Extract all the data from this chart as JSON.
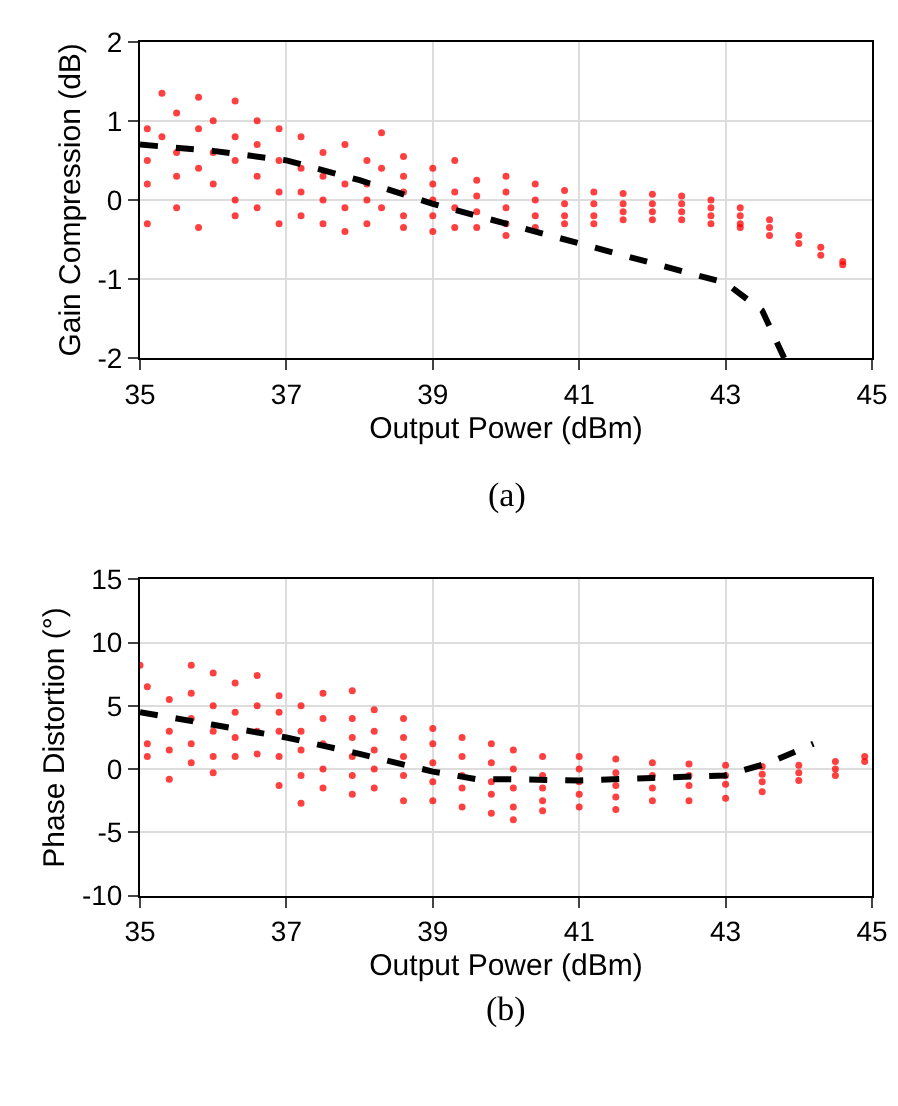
{
  "chart_data": [
    {
      "type": "scatter",
      "xlabel": "Output Power (dBm)",
      "ylabel": "Gain Compression (dB)",
      "annotations": [
        "(a)"
      ],
      "xlim": [
        35,
        45
      ],
      "ylim": [
        -2,
        2
      ],
      "xticks": [
        35,
        37,
        39,
        41,
        43,
        45
      ],
      "yticks": [
        -2,
        -1,
        0,
        1,
        2
      ],
      "grid": true,
      "series": [
        {
          "color": "#ff0000",
          "marker": "circle",
          "x": [
            35.1,
            35.1,
            35.1,
            35.1,
            35.3,
            35.3,
            35.5,
            35.5,
            35.5,
            35.5,
            35.8,
            35.8,
            35.8,
            35.8,
            36.0,
            36.0,
            36.0,
            36.3,
            36.3,
            36.3,
            36.3,
            36.3,
            36.6,
            36.6,
            36.6,
            36.6,
            36.9,
            36.9,
            36.9,
            36.9,
            37.2,
            37.2,
            37.2,
            37.2,
            37.5,
            37.5,
            37.5,
            37.5,
            37.8,
            37.8,
            37.8,
            37.8,
            38.1,
            38.1,
            38.1,
            38.1,
            38.3,
            38.3,
            38.3,
            38.6,
            38.6,
            38.6,
            38.6,
            38.6,
            39.0,
            39.0,
            39.0,
            39.0,
            39.0,
            39.3,
            39.3,
            39.3,
            39.3,
            39.6,
            39.6,
            39.6,
            39.6,
            40.0,
            40.0,
            40.0,
            40.0,
            40.0,
            40.4,
            40.4,
            40.4,
            40.4,
            40.8,
            40.8,
            40.8,
            40.8,
            41.2,
            41.2,
            41.2,
            41.2,
            41.6,
            41.6,
            41.6,
            41.6,
            42.0,
            42.0,
            42.0,
            42.0,
            42.4,
            42.4,
            42.4,
            42.4,
            42.8,
            42.8,
            42.8,
            42.8,
            43.2,
            43.2,
            43.2,
            43.2,
            43.6,
            43.6,
            43.6,
            44.0,
            44.0,
            44.3,
            44.3,
            44.6,
            44.6
          ],
          "values": [
            0.9,
            0.2,
            -0.3,
            0.5,
            1.35,
            0.8,
            1.1,
            0.6,
            0.3,
            -0.1,
            1.3,
            0.9,
            0.4,
            -0.35,
            1.0,
            0.6,
            0.2,
            1.25,
            0.8,
            0.5,
            0.0,
            -0.2,
            1.0,
            0.7,
            0.3,
            -0.1,
            0.9,
            0.5,
            0.1,
            -0.3,
            0.8,
            0.4,
            0.1,
            -0.2,
            0.6,
            0.3,
            0.0,
            -0.3,
            0.7,
            0.2,
            -0.1,
            -0.4,
            0.5,
            0.2,
            0.0,
            -0.3,
            0.85,
            0.4,
            -0.1,
            0.55,
            0.3,
            0.1,
            -0.2,
            -0.35,
            0.4,
            0.2,
            0.0,
            -0.2,
            -0.4,
            0.5,
            0.1,
            -0.1,
            -0.35,
            0.25,
            0.05,
            -0.15,
            -0.35,
            0.3,
            0.1,
            -0.1,
            -0.3,
            -0.45,
            0.2,
            0.0,
            -0.2,
            -0.35,
            0.12,
            -0.05,
            -0.2,
            -0.3,
            0.1,
            -0.05,
            -0.2,
            -0.3,
            0.08,
            -0.05,
            -0.15,
            -0.25,
            0.07,
            -0.05,
            -0.15,
            -0.25,
            0.05,
            -0.05,
            -0.15,
            -0.25,
            0.0,
            -0.1,
            -0.2,
            -0.3,
            -0.1,
            -0.2,
            -0.3,
            -0.35,
            -0.25,
            -0.35,
            -0.45,
            -0.45,
            -0.55,
            -0.6,
            -0.7,
            -0.78,
            -0.82
          ]
        },
        {
          "type": "line",
          "color": "#000000",
          "line_style": "dashed",
          "marker": "none",
          "x": [
            35,
            36,
            37,
            38,
            39,
            40,
            41,
            42,
            43,
            43.5,
            43.8
          ],
          "values": [
            0.7,
            0.62,
            0.5,
            0.25,
            -0.05,
            -0.3,
            -0.55,
            -0.8,
            -1.05,
            -1.4,
            -2
          ]
        }
      ]
    },
    {
      "type": "scatter",
      "xlabel": "Output Power (dBm)",
      "ylabel": "Phase Distortion (°)",
      "annotations": [
        "(b)"
      ],
      "xlim": [
        35,
        45
      ],
      "ylim": [
        -10,
        15
      ],
      "xticks": [
        35,
        37,
        39,
        41,
        43,
        45
      ],
      "yticks": [
        -10,
        -5,
        0,
        5,
        10,
        15
      ],
      "grid": true,
      "series": [
        {
          "color": "#ff0000",
          "marker": "circle",
          "x": [
            35.0,
            35.1,
            35.1,
            35.1,
            35.4,
            35.4,
            35.4,
            35.4,
            35.7,
            35.7,
            35.7,
            35.7,
            35.7,
            36.0,
            36.0,
            36.0,
            36.0,
            36.0,
            36.3,
            36.3,
            36.3,
            36.3,
            36.6,
            36.6,
            36.6,
            36.6,
            36.9,
            36.9,
            36.9,
            36.9,
            36.9,
            37.2,
            37.2,
            37.2,
            37.2,
            37.2,
            37.5,
            37.5,
            37.5,
            37.5,
            37.5,
            37.9,
            37.9,
            37.9,
            37.9,
            37.9,
            37.9,
            38.2,
            38.2,
            38.2,
            38.2,
            38.2,
            38.6,
            38.6,
            38.6,
            38.6,
            38.6,
            39.0,
            39.0,
            39.0,
            39.0,
            39.0,
            39.4,
            39.4,
            39.4,
            39.4,
            39.4,
            39.8,
            39.8,
            39.8,
            39.8,
            39.8,
            40.1,
            40.1,
            40.1,
            40.1,
            40.1,
            40.5,
            40.5,
            40.5,
            40.5,
            40.5,
            41.0,
            41.0,
            41.0,
            41.0,
            41.0,
            41.5,
            41.5,
            41.5,
            41.5,
            41.5,
            42.0,
            42.0,
            42.0,
            42.0,
            42.5,
            42.5,
            42.5,
            42.5,
            43.0,
            43.0,
            43.0,
            43.0,
            43.5,
            43.5,
            43.5,
            43.5,
            44.0,
            44.0,
            44.0,
            44.5,
            44.5,
            44.5,
            44.9,
            44.9
          ],
          "values": [
            8.2,
            6.5,
            2,
            1,
            5.5,
            3,
            1.5,
            -0.8,
            8.2,
            6,
            4,
            2,
            0.5,
            7.6,
            5,
            3,
            1,
            -0.3,
            6.8,
            4.5,
            2.5,
            1,
            7.4,
            5,
            3,
            1.2,
            5.8,
            4.5,
            3,
            1,
            -1.3,
            5,
            3,
            1.5,
            -0.5,
            -2.7,
            6,
            4,
            2,
            0,
            -1.5,
            6.2,
            4,
            2.5,
            1,
            -0.5,
            -2,
            4.7,
            3,
            1.5,
            0,
            -1.5,
            4,
            2.5,
            1,
            -0.5,
            -2.5,
            3.2,
            2,
            0.5,
            -1,
            -2.5,
            2.5,
            1,
            -0.5,
            -1.5,
            -3,
            2,
            0.5,
            -1,
            -2,
            -3.5,
            1.5,
            0,
            -1.5,
            -3,
            -4,
            1,
            -0.5,
            -1.5,
            -2.5,
            -3.3,
            1,
            0,
            -1,
            -2,
            -3,
            0.8,
            -0.3,
            -1.3,
            -2.2,
            -3.2,
            0.5,
            -0.5,
            -1.5,
            -2.5,
            0.4,
            -0.5,
            -1.3,
            -2.5,
            0.3,
            -0.5,
            -1.2,
            -2.3,
            0.2,
            -0.4,
            -1,
            -1.8,
            0.3,
            -0.3,
            -0.9,
            0.6,
            0,
            -0.5,
            1.0,
            0.6
          ]
        },
        {
          "type": "line",
          "color": "#000000",
          "line_style": "dashed",
          "marker": "none",
          "x": [
            35,
            36,
            37,
            38,
            39,
            39.6,
            40,
            41,
            42,
            43,
            43.6,
            44.2
          ],
          "values": [
            4.5,
            3.5,
            2.5,
            1.2,
            -0.2,
            -0.8,
            -0.8,
            -0.9,
            -0.7,
            -0.5,
            0.5,
            2
          ]
        }
      ]
    }
  ]
}
